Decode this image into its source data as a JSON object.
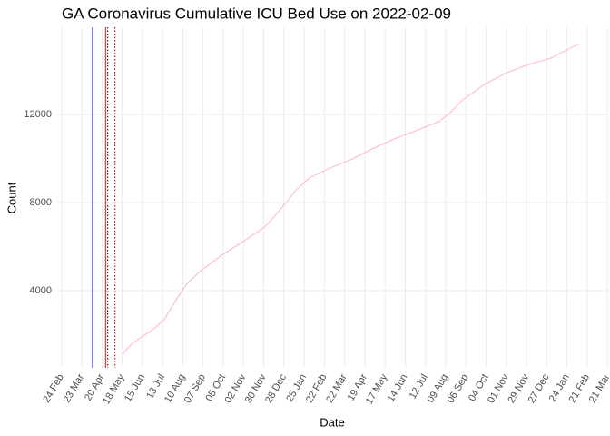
{
  "chart_data": {
    "type": "line",
    "title": "GA Coronavirus Cumulative ICU Bed Use on 2022-02-09",
    "x_label": "Date",
    "y_label": "Count",
    "x": [
      "2020-05-18",
      "2020-06-01",
      "2020-07-01",
      "2020-07-15",
      "2020-08-01",
      "2020-08-15",
      "2020-09-01",
      "2020-10-01",
      "2020-11-01",
      "2020-12-01",
      "2020-12-15",
      "2021-01-01",
      "2021-01-15",
      "2021-02-01",
      "2021-03-01",
      "2021-04-01",
      "2021-05-01",
      "2021-06-01",
      "2021-07-01",
      "2021-08-01",
      "2021-08-15",
      "2021-09-01",
      "2021-10-01",
      "2021-11-01",
      "2021-12-01",
      "2022-01-01",
      "2022-02-09"
    ],
    "series": [
      {
        "name": "ICU Bed Use",
        "color": "#ffb6c1",
        "values": [
          1100,
          1610,
          2270,
          2680,
          3590,
          4290,
          4820,
          5570,
          6220,
          6880,
          7380,
          8040,
          8610,
          9110,
          9560,
          9970,
          10470,
          10920,
          11290,
          11700,
          12080,
          12650,
          13350,
          13890,
          14260,
          14550,
          15200
        ]
      }
    ],
    "xlim": [
      "2020-02-18",
      "2022-03-22"
    ],
    "xticks": [
      {
        "value": "2020-02-24",
        "label": "24 Feb"
      },
      {
        "value": "2020-03-23",
        "label": "23 Mar"
      },
      {
        "value": "2020-04-20",
        "label": "20 Apr"
      },
      {
        "value": "2020-05-18",
        "label": "18 May"
      },
      {
        "value": "2020-06-15",
        "label": "15 Jun"
      },
      {
        "value": "2020-07-13",
        "label": "13 Jul"
      },
      {
        "value": "2020-08-10",
        "label": "10 Aug"
      },
      {
        "value": "2020-09-07",
        "label": "07 Sep"
      },
      {
        "value": "2020-10-05",
        "label": "05 Oct"
      },
      {
        "value": "2020-11-02",
        "label": "02 Nov"
      },
      {
        "value": "2020-11-30",
        "label": "30 Nov"
      },
      {
        "value": "2020-12-28",
        "label": "28 Dec"
      },
      {
        "value": "2021-01-25",
        "label": "25 Jan"
      },
      {
        "value": "2021-02-22",
        "label": "22 Feb"
      },
      {
        "value": "2021-03-22",
        "label": "22 Mar"
      },
      {
        "value": "2021-04-19",
        "label": "19 Apr"
      },
      {
        "value": "2021-05-17",
        "label": "17 May"
      },
      {
        "value": "2021-06-14",
        "label": "14 Jun"
      },
      {
        "value": "2021-07-12",
        "label": "12 Jul"
      },
      {
        "value": "2021-08-09",
        "label": "09 Aug"
      },
      {
        "value": "2021-09-06",
        "label": "06 Sep"
      },
      {
        "value": "2021-10-04",
        "label": "04 Oct"
      },
      {
        "value": "2021-11-01",
        "label": "01 Nov"
      },
      {
        "value": "2021-11-29",
        "label": "29 Nov"
      },
      {
        "value": "2021-12-27",
        "label": "27 Dec"
      },
      {
        "value": "2022-01-24",
        "label": "24 Jan"
      },
      {
        "value": "2022-02-21",
        "label": "21 Feb"
      },
      {
        "value": "2022-03-21",
        "label": "21 Mar"
      }
    ],
    "ylim": [
      495,
      15960
    ],
    "yticks": [
      4000,
      8000,
      12000
    ],
    "grid": true,
    "vlines": [
      {
        "x": "2020-04-07",
        "color": "#0000ff",
        "dash": false
      },
      {
        "x": "2020-04-25",
        "color": "#ff0000",
        "dash": false
      },
      {
        "x": "2020-04-28",
        "color": "#000000",
        "dash": true
      },
      {
        "x": "2020-05-08",
        "color": "#8b0000",
        "dash": true
      }
    ]
  }
}
